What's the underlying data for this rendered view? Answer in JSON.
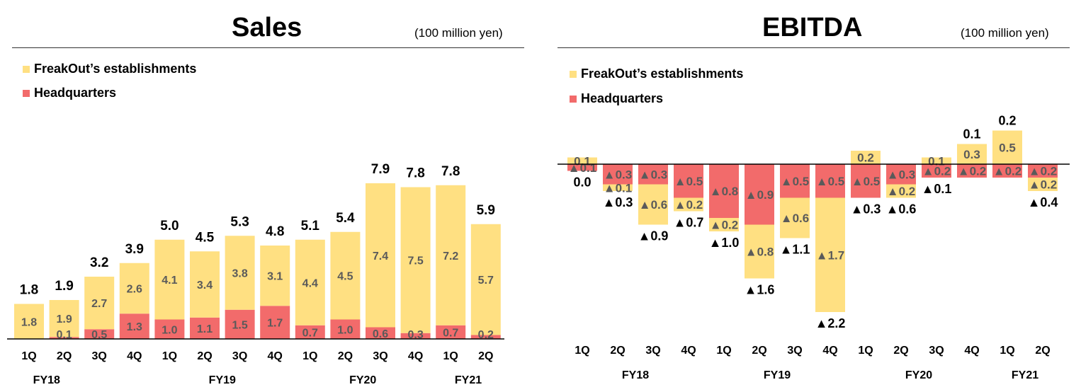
{
  "colors": {
    "establishments": "#FFE082",
    "headquarters": "#F26B6B",
    "inner_label": "#5a5a5a"
  },
  "negative_prefix": "▲",
  "chart_data": [
    {
      "type": "bar",
      "title": "Sales",
      "unit": "(100 million yen)",
      "legend": [
        "FreakOut’s establishments",
        "Headquarters"
      ],
      "categories": [
        "1Q",
        "2Q",
        "3Q",
        "4Q",
        "1Q",
        "2Q",
        "3Q",
        "4Q",
        "1Q",
        "2Q",
        "3Q",
        "4Q",
        "1Q",
        "2Q"
      ],
      "fiscal_years": [
        {
          "label": "FY18",
          "start": 0,
          "end": 1
        },
        {
          "label": "FY19",
          "start": 4,
          "end": 7
        },
        {
          "label": "FY20",
          "start": 8,
          "end": 11
        },
        {
          "label": "FY21",
          "start": 12,
          "end": 13
        }
      ],
      "series": [
        {
          "name": "Headquarters",
          "values": [
            0.0,
            0.1,
            0.5,
            1.3,
            1.0,
            1.1,
            1.5,
            1.7,
            0.7,
            1.0,
            0.6,
            0.3,
            0.7,
            0.2
          ]
        },
        {
          "name": "FreakOut’s establishments",
          "values": [
            1.8,
            1.9,
            2.7,
            2.6,
            4.1,
            3.4,
            3.8,
            3.1,
            4.4,
            4.5,
            7.4,
            7.5,
            7.2,
            5.7
          ]
        }
      ],
      "totals": [
        1.8,
        1.9,
        3.2,
        3.9,
        5.0,
        4.5,
        5.3,
        4.8,
        5.1,
        5.4,
        7.9,
        7.8,
        7.8,
        5.9
      ]
    },
    {
      "type": "bar",
      "title": "EBITDA",
      "unit": "(100 million yen)",
      "legend": [
        "FreakOut’s establishments",
        "Headquarters"
      ],
      "categories": [
        "1Q",
        "2Q",
        "3Q",
        "4Q",
        "1Q",
        "2Q",
        "3Q",
        "4Q",
        "1Q",
        "2Q",
        "3Q",
        "4Q",
        "1Q",
        "2Q"
      ],
      "fiscal_years": [
        {
          "label": "FY18",
          "start": 0,
          "end": 3
        },
        {
          "label": "FY19",
          "start": 4,
          "end": 7
        },
        {
          "label": "FY20",
          "start": 8,
          "end": 11
        },
        {
          "label": "FY21",
          "start": 12,
          "end": 13
        }
      ],
      "series": [
        {
          "name": "FreakOut’s establishments",
          "values": [
            0.1,
            -0.1,
            -0.6,
            -0.2,
            -0.2,
            -0.8,
            -0.6,
            -1.7,
            0.2,
            -0.2,
            0.1,
            0.3,
            0.5,
            -0.2
          ]
        },
        {
          "name": "Headquarters",
          "values": [
            -0.1,
            -0.3,
            -0.3,
            -0.5,
            -0.8,
            -0.9,
            -0.5,
            -0.5,
            -0.5,
            -0.3,
            -0.2,
            -0.2,
            -0.2,
            -0.2
          ]
        }
      ],
      "totals": [
        0.0,
        -0.3,
        -0.9,
        -0.7,
        -1.0,
        -1.6,
        -1.1,
        -2.2,
        -0.3,
        -0.6,
        -0.1,
        0.1,
        0.2,
        -0.4
      ]
    }
  ]
}
